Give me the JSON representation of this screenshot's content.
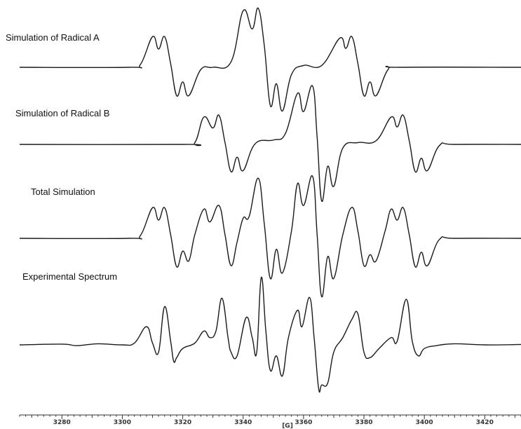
{
  "chart_data": {
    "type": "line",
    "xlabel": "[G]",
    "ylabel": "",
    "xlim": [
      3266,
      3432
    ],
    "x_ticks": [
      3280,
      3300,
      3320,
      3340,
      3360,
      3380,
      3400,
      3420
    ],
    "x_tick_labels": [
      "3280",
      "3300",
      "3320",
      "3340",
      "3360",
      "3380",
      "3400",
      "3420"
    ],
    "grid": false,
    "series": [
      {
        "name": "Simulation of Radical A",
        "points": [
          [
            3266,
            0
          ],
          [
            3302,
            0
          ],
          [
            3306,
            0.08
          ],
          [
            3310,
            0.84
          ],
          [
            3312,
            0.5
          ],
          [
            3314,
            0.84
          ],
          [
            3316,
            0.1
          ],
          [
            3318,
            -0.78
          ],
          [
            3320,
            -0.4
          ],
          [
            3322,
            -0.78
          ],
          [
            3326,
            -0.06
          ],
          [
            3330,
            0
          ],
          [
            3336,
            0.15
          ],
          [
            3340,
            1.55
          ],
          [
            3343,
            1.05
          ],
          [
            3345,
            1.62
          ],
          [
            3347,
            0.6
          ],
          [
            3349,
            -1.05
          ],
          [
            3351,
            -0.45
          ],
          [
            3353,
            -1.2
          ],
          [
            3356,
            -0.2
          ],
          [
            3360,
            0.05
          ],
          [
            3366,
            0.05
          ],
          [
            3372,
            0.8
          ],
          [
            3374,
            0.52
          ],
          [
            3376,
            0.84
          ],
          [
            3378,
            0.1
          ],
          [
            3380,
            -0.78
          ],
          [
            3382,
            -0.4
          ],
          [
            3384,
            -0.78
          ],
          [
            3388,
            -0.06
          ],
          [
            3392,
            0
          ],
          [
            3432,
            0
          ]
        ]
      },
      {
        "name": "Simulation of Radical B",
        "points": [
          [
            3266,
            0
          ],
          [
            3320,
            0
          ],
          [
            3324,
            0.05
          ],
          [
            3327,
            0.75
          ],
          [
            3330,
            0.45
          ],
          [
            3332,
            0.8
          ],
          [
            3334,
            0.05
          ],
          [
            3336,
            -0.75
          ],
          [
            3338,
            -0.35
          ],
          [
            3340,
            -0.72
          ],
          [
            3344,
            0.02
          ],
          [
            3350,
            0.12
          ],
          [
            3354,
            0.3
          ],
          [
            3358,
            1.4
          ],
          [
            3360,
            0.9
          ],
          [
            3363,
            1.6
          ],
          [
            3364.5,
            0.2
          ],
          [
            3366,
            -1.55
          ],
          [
            3368,
            -0.6
          ],
          [
            3370,
            -1.15
          ],
          [
            3373,
            -0.1
          ],
          [
            3378,
            0.05
          ],
          [
            3384,
            0.1
          ],
          [
            3389,
            0.75
          ],
          [
            3391,
            0.48
          ],
          [
            3393,
            0.8
          ],
          [
            3395,
            0.1
          ],
          [
            3397,
            -0.75
          ],
          [
            3399,
            -0.38
          ],
          [
            3401,
            -0.72
          ],
          [
            3405,
            -0.03
          ],
          [
            3410,
            0
          ],
          [
            3432,
            0
          ]
        ]
      },
      {
        "name": "Total Simulation",
        "points": [
          [
            3266,
            0
          ],
          [
            3302,
            0
          ],
          [
            3306,
            0.08
          ],
          [
            3310,
            0.84
          ],
          [
            3312,
            0.5
          ],
          [
            3314,
            0.84
          ],
          [
            3316,
            0.1
          ],
          [
            3318,
            -0.78
          ],
          [
            3320,
            -0.35
          ],
          [
            3322,
            -0.62
          ],
          [
            3324,
            0.1
          ],
          [
            3327,
            0.8
          ],
          [
            3329,
            0.45
          ],
          [
            3332,
            0.9
          ],
          [
            3334,
            0.1
          ],
          [
            3336,
            -0.75
          ],
          [
            3338,
            -0.1
          ],
          [
            3340,
            0.55
          ],
          [
            3342,
            0.6
          ],
          [
            3345,
            1.65
          ],
          [
            3347,
            0.4
          ],
          [
            3349,
            -1.1
          ],
          [
            3351,
            -0.3
          ],
          [
            3353,
            -0.95
          ],
          [
            3356,
            0.2
          ],
          [
            3358,
            1.5
          ],
          [
            3360,
            0.9
          ],
          [
            3363,
            1.7
          ],
          [
            3364.5,
            0.1
          ],
          [
            3366,
            -1.6
          ],
          [
            3368,
            -0.5
          ],
          [
            3370,
            -1.1
          ],
          [
            3373,
            0.1
          ],
          [
            3376,
            0.85
          ],
          [
            3378,
            0.2
          ],
          [
            3380,
            -0.75
          ],
          [
            3382,
            -0.45
          ],
          [
            3384,
            -0.62
          ],
          [
            3387,
            0.2
          ],
          [
            3389,
            0.8
          ],
          [
            3391,
            0.5
          ],
          [
            3393,
            0.84
          ],
          [
            3395,
            0.1
          ],
          [
            3397,
            -0.78
          ],
          [
            3399,
            -0.38
          ],
          [
            3401,
            -0.75
          ],
          [
            3405,
            -0.03
          ],
          [
            3410,
            0
          ],
          [
            3432,
            0
          ]
        ]
      },
      {
        "name": "Experimental Spectrum",
        "points": [
          [
            3266,
            0
          ],
          [
            3280,
            0.02
          ],
          [
            3285,
            -0.02
          ],
          [
            3292,
            0.03
          ],
          [
            3300,
            0
          ],
          [
            3304,
            0.05
          ],
          [
            3308,
            0.5
          ],
          [
            3310,
            0.05
          ],
          [
            3312,
            -0.2
          ],
          [
            3314,
            1.05
          ],
          [
            3316,
            0.1
          ],
          [
            3317,
            -0.45
          ],
          [
            3318,
            -0.35
          ],
          [
            3320,
            -0.1
          ],
          [
            3324,
            0.05
          ],
          [
            3327,
            0.38
          ],
          [
            3329,
            0.2
          ],
          [
            3331,
            0.38
          ],
          [
            3333,
            1.28
          ],
          [
            3335,
            0.2
          ],
          [
            3336,
            -0.2
          ],
          [
            3338,
            -0.3
          ],
          [
            3341,
            0.75
          ],
          [
            3343,
            0.2
          ],
          [
            3344.5,
            -0.2
          ],
          [
            3346,
            1.85
          ],
          [
            3347.5,
            0.4
          ],
          [
            3349,
            -0.7
          ],
          [
            3351,
            -0.3
          ],
          [
            3353,
            -0.85
          ],
          [
            3355,
            0.2
          ],
          [
            3358,
            0.95
          ],
          [
            3359.5,
            0.5
          ],
          [
            3362,
            1.3
          ],
          [
            3363.5,
            0.2
          ],
          [
            3365,
            -1.2
          ],
          [
            3366,
            -1.1
          ],
          [
            3368,
            -1.05
          ],
          [
            3370,
            -0.2
          ],
          [
            3373,
            0.2
          ],
          [
            3376,
            0.7
          ],
          [
            3378,
            0.85
          ],
          [
            3380,
            -0.2
          ],
          [
            3382,
            -0.35
          ],
          [
            3385,
            -0.1
          ],
          [
            3389,
            0.2
          ],
          [
            3391,
            0.1
          ],
          [
            3394,
            1.25
          ],
          [
            3396,
            0.1
          ],
          [
            3398,
            -0.3
          ],
          [
            3400,
            -0.1
          ],
          [
            3404,
            -0.02
          ],
          [
            3410,
            0.03
          ],
          [
            3420,
            0
          ],
          [
            3432,
            0.01
          ]
        ]
      }
    ]
  }
}
